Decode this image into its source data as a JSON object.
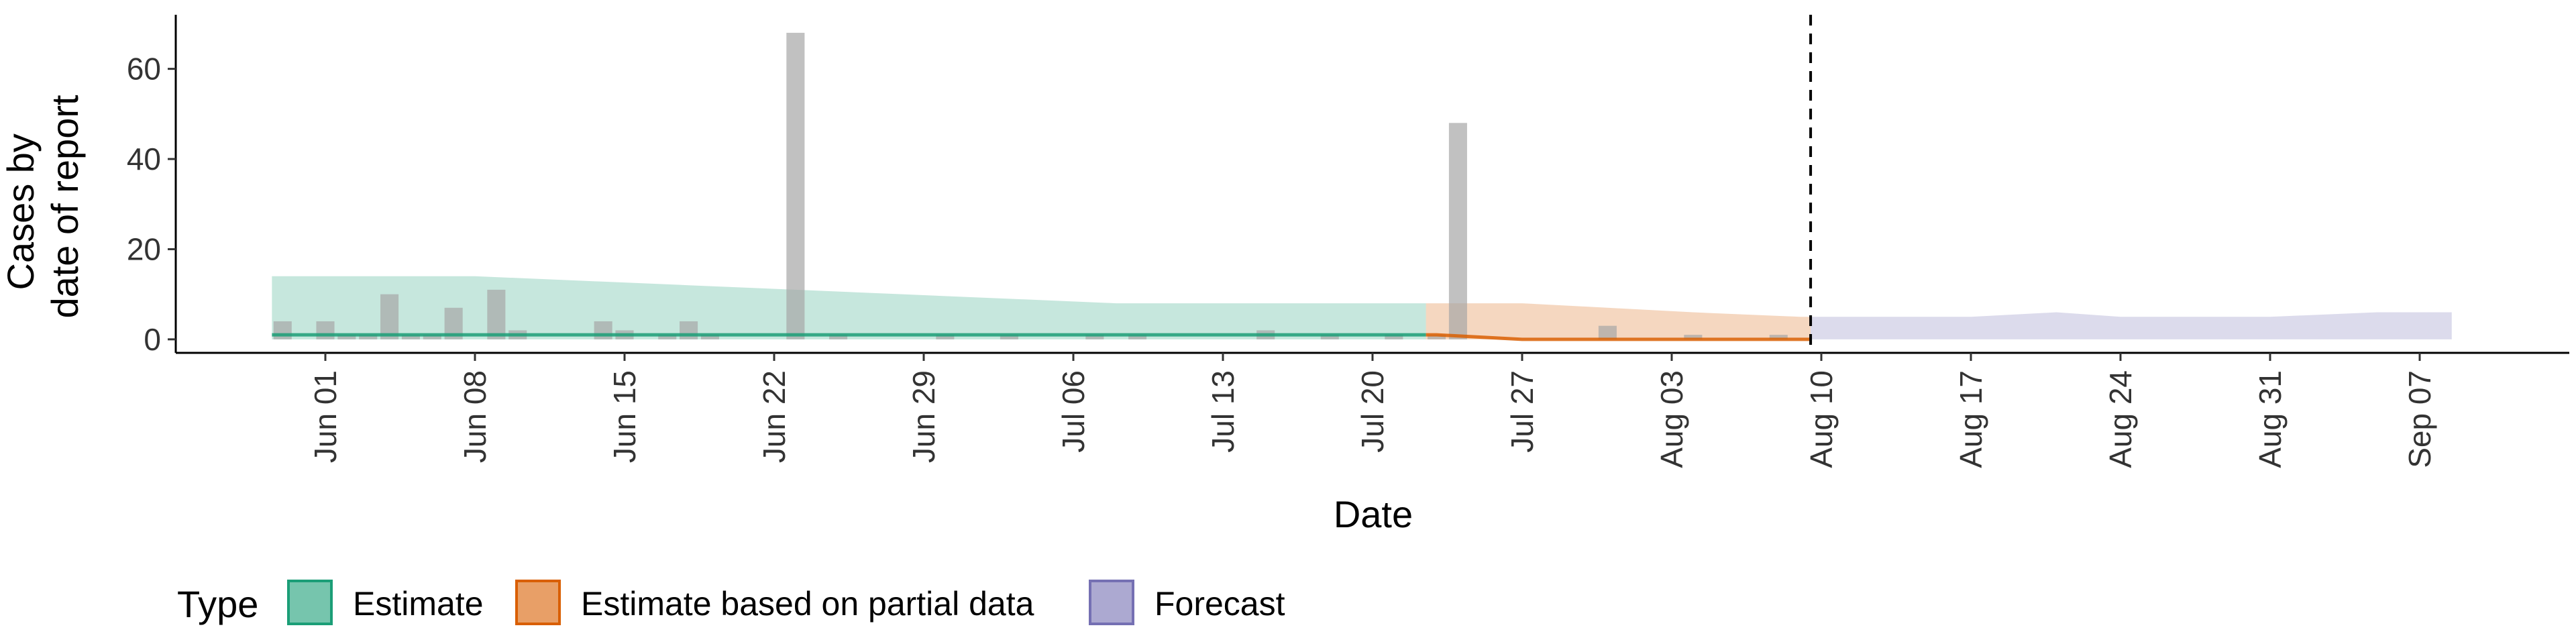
{
  "chart_data": {
    "type": "bar",
    "title": "",
    "xlabel": "Date",
    "ylabel": [
      "Cases by",
      "date of report"
    ],
    "x_axis": {
      "start": "2020-05-25",
      "end": "2020-09-14",
      "ticks": [
        {
          "date": "2020-06-01",
          "label": "Jun 01"
        },
        {
          "date": "2020-06-08",
          "label": "Jun 08"
        },
        {
          "date": "2020-06-15",
          "label": "Jun 15"
        },
        {
          "date": "2020-06-22",
          "label": "Jun 22"
        },
        {
          "date": "2020-06-29",
          "label": "Jun 29"
        },
        {
          "date": "2020-07-06",
          "label": "Jul 06"
        },
        {
          "date": "2020-07-13",
          "label": "Jul 13"
        },
        {
          "date": "2020-07-20",
          "label": "Jul 20"
        },
        {
          "date": "2020-07-27",
          "label": "Jul 27"
        },
        {
          "date": "2020-08-03",
          "label": "Aug 03"
        },
        {
          "date": "2020-08-10",
          "label": "Aug 10"
        },
        {
          "date": "2020-08-17",
          "label": "Aug 17"
        },
        {
          "date": "2020-08-24",
          "label": "Aug 24"
        },
        {
          "date": "2020-08-31",
          "label": "Aug 31"
        },
        {
          "date": "2020-09-07",
          "label": "Sep 07"
        }
      ]
    },
    "ylim": [
      -3,
      72
    ],
    "yticks": [
      0,
      20,
      40,
      60
    ],
    "grid": false,
    "reference_line": {
      "date": "2020-08-09",
      "style": "dashed"
    },
    "observed_cases": [
      {
        "date": "2020-05-30",
        "value": 4
      },
      {
        "date": "2020-06-01",
        "value": 4
      },
      {
        "date": "2020-06-02",
        "value": 1
      },
      {
        "date": "2020-06-03",
        "value": 1
      },
      {
        "date": "2020-06-04",
        "value": 10
      },
      {
        "date": "2020-06-05",
        "value": 1
      },
      {
        "date": "2020-06-06",
        "value": 1
      },
      {
        "date": "2020-06-07",
        "value": 7
      },
      {
        "date": "2020-06-09",
        "value": 11
      },
      {
        "date": "2020-06-10",
        "value": 2
      },
      {
        "date": "2020-06-14",
        "value": 4
      },
      {
        "date": "2020-06-15",
        "value": 2
      },
      {
        "date": "2020-06-17",
        "value": 1
      },
      {
        "date": "2020-06-18",
        "value": 4
      },
      {
        "date": "2020-06-19",
        "value": 1
      },
      {
        "date": "2020-06-23",
        "value": 68
      },
      {
        "date": "2020-06-25",
        "value": 1
      },
      {
        "date": "2020-06-30",
        "value": 1
      },
      {
        "date": "2020-07-03",
        "value": 1
      },
      {
        "date": "2020-07-07",
        "value": 1
      },
      {
        "date": "2020-07-09",
        "value": 1
      },
      {
        "date": "2020-07-15",
        "value": 2
      },
      {
        "date": "2020-07-18",
        "value": 1
      },
      {
        "date": "2020-07-21",
        "value": 1
      },
      {
        "date": "2020-07-23",
        "value": 1
      },
      {
        "date": "2020-07-24",
        "value": 48
      },
      {
        "date": "2020-07-31",
        "value": 3
      },
      {
        "date": "2020-08-04",
        "value": 1
      },
      {
        "date": "2020-08-08",
        "value": 1
      }
    ],
    "series": [
      {
        "name": "Estimate",
        "color": "#1B9E77",
        "x": [
          "2020-05-30",
          "2020-06-03",
          "2020-06-08",
          "2020-06-13",
          "2020-06-18",
          "2020-06-23",
          "2020-06-28",
          "2020-07-03",
          "2020-07-08",
          "2020-07-13",
          "2020-07-18",
          "2020-07-22"
        ],
        "lower": [
          0,
          0,
          0,
          0,
          0,
          0,
          0,
          0,
          0,
          0,
          0,
          0
        ],
        "upper": [
          14,
          14,
          14,
          13,
          12,
          11,
          10,
          9,
          8,
          8,
          8,
          8
        ],
        "median": [
          1,
          1,
          1,
          1,
          1,
          1,
          1,
          1,
          1,
          1,
          1,
          1
        ]
      },
      {
        "name": "Estimate based on partial data",
        "color": "#D95F02",
        "x": [
          "2020-07-23",
          "2020-07-27",
          "2020-07-31",
          "2020-08-04",
          "2020-08-09"
        ],
        "lower": [
          0,
          0,
          0,
          0,
          0
        ],
        "upper": [
          8,
          8,
          7,
          6,
          5
        ],
        "median": [
          1,
          0,
          0,
          0,
          0
        ]
      },
      {
        "name": "Forecast",
        "color": "#7570B3",
        "x": [
          "2020-08-10",
          "2020-08-12",
          "2020-08-17",
          "2020-08-21",
          "2020-08-24",
          "2020-08-31",
          "2020-09-05",
          "2020-09-08"
        ],
        "lower": [
          0,
          0,
          0,
          0,
          0,
          0,
          0,
          0
        ],
        "upper": [
          5,
          5,
          5,
          6,
          5,
          5,
          6,
          6
        ]
      }
    ],
    "legend": {
      "title": "Type",
      "placement": "bottom",
      "items": [
        {
          "label": "Estimate",
          "color": "#1B9E77"
        },
        {
          "label": "Estimate based on partial data",
          "color": "#D95F02"
        },
        {
          "label": "Forecast",
          "color": "#7570B3"
        }
      ]
    }
  }
}
